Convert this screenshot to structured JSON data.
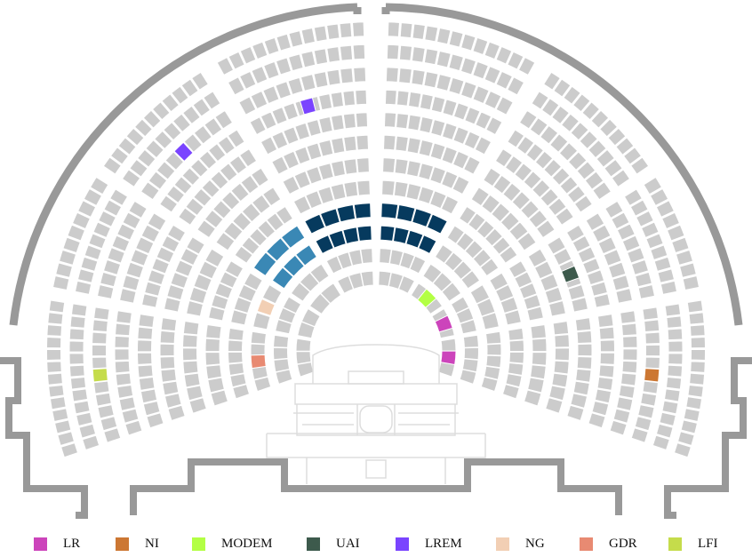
{
  "colors": {
    "seat_empty": "#cccccc",
    "walls": "#999999",
    "podium_lines": "#dddddd",
    "LR": "#cc44bb",
    "NI": "#cc7733",
    "MODEM": "#b3ff44",
    "UAI": "#3d5a4c",
    "LREM": "#7a44ff",
    "NG": "#f2cfb4",
    "GDR": "#e88a72",
    "LFI": "#c5dc4b",
    "REM_light": "#3a88b5",
    "REM_dark": "#063a5e"
  },
  "legend": [
    {
      "key": "LR",
      "label": "LR"
    },
    {
      "key": "NI",
      "label": "NI"
    },
    {
      "key": "MODEM",
      "label": "MODEM"
    },
    {
      "key": "UAI",
      "label": "UAI"
    },
    {
      "key": "LREM",
      "label": "LREM"
    },
    {
      "key": "NG",
      "label": "NG"
    },
    {
      "key": "GDR",
      "label": "GDR"
    },
    {
      "key": "LFI",
      "label": "LFI"
    }
  ],
  "highlighted_seats": [
    {
      "group": "LREM",
      "sector": 2,
      "row": 9
    },
    {
      "group": "LREM",
      "sector": 3,
      "row": 8
    },
    {
      "group": "UAI",
      "sector": 6,
      "row": 6
    },
    {
      "group": "LR",
      "sector": 6,
      "row": 0
    },
    {
      "group": "MODEM",
      "sector": 5,
      "row": 0
    },
    {
      "group": "NG",
      "sector": 1,
      "row": 2
    },
    {
      "group": "GDR",
      "sector": 0,
      "row": 2
    },
    {
      "group": "LFI",
      "sector": 0,
      "row": 9
    },
    {
      "group": "LR",
      "sector": 7,
      "row": 0
    },
    {
      "group": "NI",
      "sector": 7,
      "row": 9
    }
  ]
}
